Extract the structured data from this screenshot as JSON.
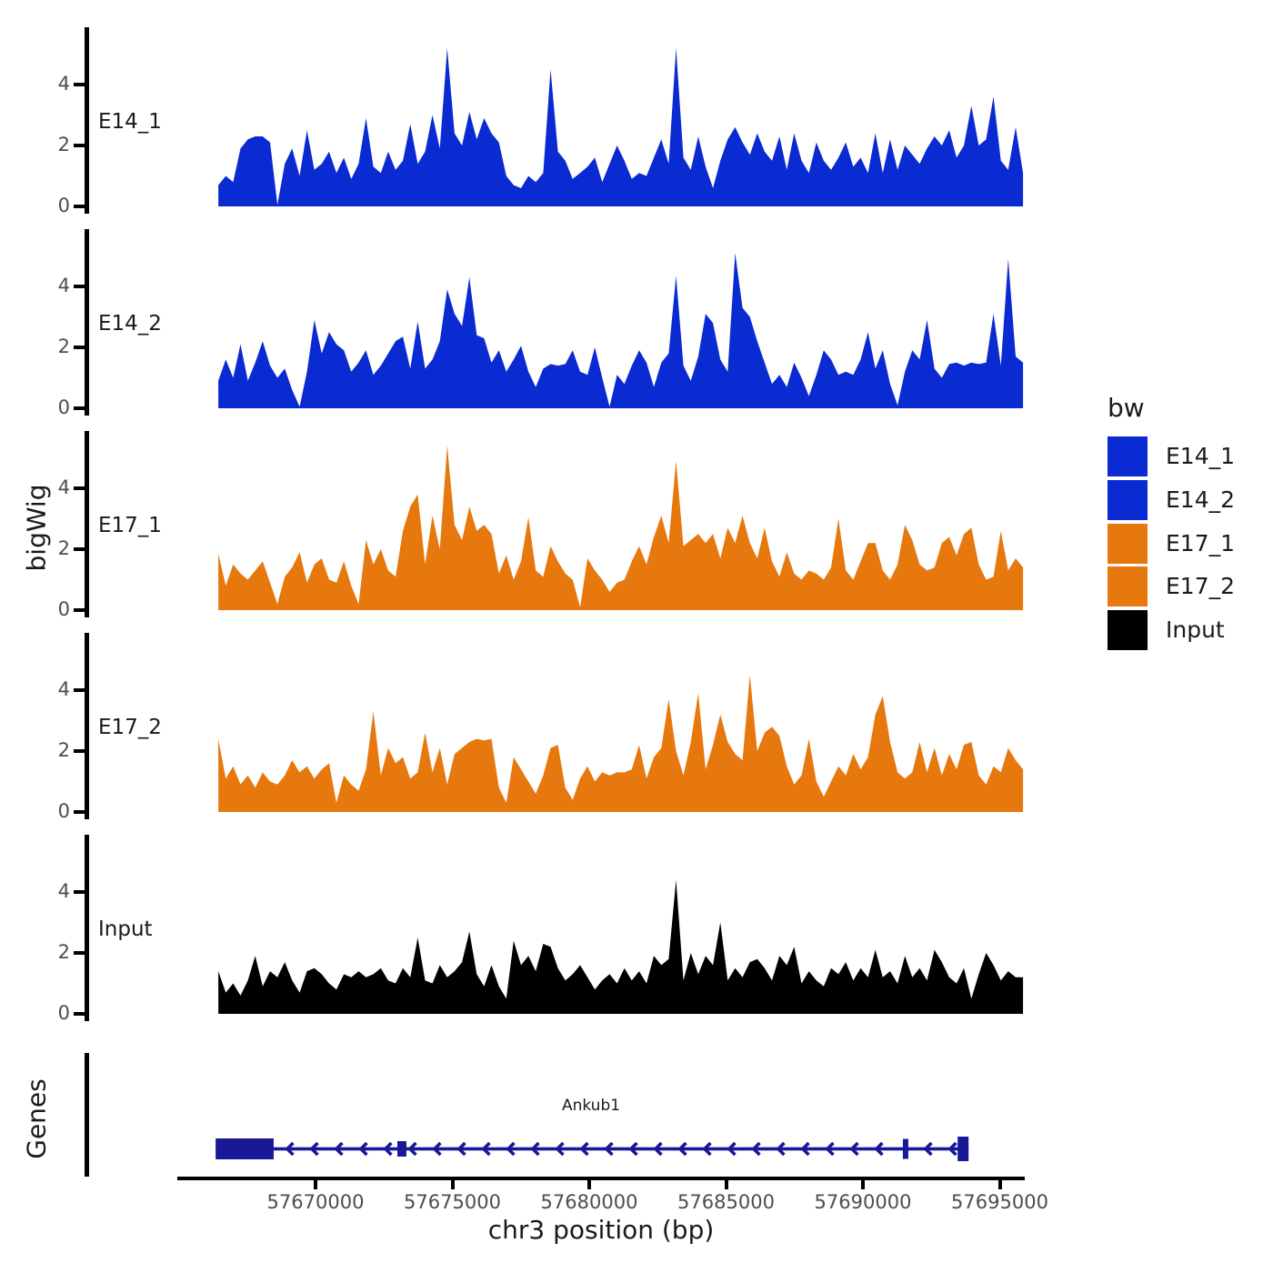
{
  "figure": {
    "ylabel_tracks": "bigWig",
    "ylabel_genes": "Genes",
    "xlabel": "chr3 position (bp)",
    "legend_title": "bw"
  },
  "chart_data": {
    "type": "area",
    "title": "",
    "xlabel": "chr3 position (bp)",
    "ylabel": "bigWig",
    "ylim": [
      0,
      5.9
    ],
    "y_ticks": [
      0,
      2,
      4
    ],
    "grid": false,
    "legend_position": "right",
    "legend_title": "bw",
    "x_axis_start": 57665000,
    "x_data_start": 57666450,
    "x_data_end": 57695850,
    "x_ticks": [
      {
        "value": 57670000,
        "label": "57670000"
      },
      {
        "value": 57675000,
        "label": "57675000"
      },
      {
        "value": 57680000,
        "label": "57680000"
      },
      {
        "value": 57685000,
        "label": "57685000"
      },
      {
        "value": 57690000,
        "label": "57690000"
      },
      {
        "value": 57695000,
        "label": "57695000"
      }
    ],
    "legend_entries": [
      {
        "label": "E14_1",
        "color": "#0a2ad2"
      },
      {
        "label": "E14_2",
        "color": "#0a2ad2"
      },
      {
        "label": "E17_1",
        "color": "#e6780e"
      },
      {
        "label": "E17_2",
        "color": "#e6780e"
      },
      {
        "label": "Input",
        "color": "#000000"
      }
    ],
    "tracks": [
      {
        "name": "E14_1",
        "color": "#0a2ad2",
        "values": [
          0.7,
          1.0,
          0.8,
          1.9,
          2.2,
          2.3,
          2.3,
          2.1,
          0.05,
          1.4,
          1.9,
          1.0,
          2.5,
          1.2,
          1.4,
          1.8,
          1.1,
          1.6,
          0.9,
          1.4,
          2.9,
          1.3,
          1.1,
          1.8,
          1.2,
          1.5,
          2.7,
          1.4,
          1.8,
          3.0,
          1.9,
          5.2,
          2.4,
          2.0,
          3.1,
          2.2,
          2.9,
          2.4,
          2.1,
          1.0,
          0.7,
          0.6,
          1.0,
          0.8,
          1.1,
          4.5,
          1.8,
          1.5,
          0.9,
          1.1,
          1.3,
          1.6,
          0.8,
          1.4,
          2.0,
          1.5,
          0.9,
          1.1,
          1.0,
          1.6,
          2.2,
          1.4,
          5.2,
          1.6,
          1.2,
          2.3,
          1.3,
          0.6,
          1.5,
          2.2,
          2.6,
          2.1,
          1.7,
          2.4,
          1.8,
          1.5,
          2.3,
          1.2,
          2.4,
          1.5,
          1.1,
          2.1,
          1.5,
          1.2,
          1.6,
          2.1,
          1.3,
          1.6,
          1.1,
          2.4,
          1.1,
          2.2,
          1.2,
          2.0,
          1.7,
          1.4,
          1.9,
          2.3,
          2.0,
          2.5,
          1.6,
          2.0,
          3.3,
          2.0,
          2.2,
          3.6,
          1.5,
          1.2,
          2.6,
          1.1
        ]
      },
      {
        "name": "E14_2",
        "color": "#0a2ad2",
        "values": [
          0.9,
          1.6,
          1.0,
          2.1,
          0.9,
          1.5,
          2.2,
          1.4,
          1.0,
          1.3,
          0.6,
          0.05,
          1.2,
          2.9,
          1.8,
          2.5,
          2.1,
          1.9,
          1.2,
          1.5,
          1.9,
          1.1,
          1.4,
          1.8,
          2.2,
          2.35,
          1.3,
          2.85,
          1.3,
          1.6,
          2.2,
          3.9,
          3.1,
          2.7,
          4.3,
          2.4,
          2.3,
          1.5,
          1.9,
          1.2,
          1.6,
          2.05,
          1.2,
          0.7,
          1.3,
          1.45,
          1.4,
          1.45,
          1.9,
          1.2,
          1.1,
          2.0,
          1.0,
          0.05,
          1.1,
          0.8,
          1.4,
          1.9,
          1.5,
          0.7,
          1.5,
          1.8,
          4.35,
          1.4,
          0.9,
          1.7,
          3.1,
          2.8,
          1.6,
          1.2,
          5.1,
          3.3,
          3.0,
          2.2,
          1.5,
          0.8,
          1.1,
          0.7,
          1.5,
          1.0,
          0.4,
          1.1,
          1.9,
          1.6,
          1.1,
          1.2,
          1.1,
          1.6,
          2.5,
          1.3,
          1.9,
          0.8,
          0.1,
          1.2,
          1.9,
          1.6,
          2.9,
          1.3,
          1.0,
          1.45,
          1.5,
          1.4,
          1.5,
          1.45,
          1.5,
          3.1,
          1.4,
          4.9,
          1.7,
          1.5
        ]
      },
      {
        "name": "E17_1",
        "color": "#e6780e",
        "values": [
          1.85,
          0.8,
          1.5,
          1.2,
          1.0,
          1.3,
          1.6,
          0.9,
          0.2,
          1.1,
          1.4,
          1.9,
          0.9,
          1.5,
          1.7,
          1.0,
          0.9,
          1.6,
          0.8,
          0.2,
          2.3,
          1.5,
          2.0,
          1.3,
          1.1,
          2.6,
          3.4,
          3.8,
          1.5,
          3.1,
          2.0,
          5.4,
          2.8,
          2.3,
          3.4,
          2.6,
          2.8,
          2.5,
          1.2,
          1.8,
          1.0,
          1.6,
          3.05,
          1.3,
          1.1,
          2.1,
          1.6,
          1.2,
          1.0,
          0.1,
          1.7,
          1.3,
          1.0,
          0.6,
          0.9,
          1.0,
          1.6,
          2.1,
          1.5,
          2.4,
          3.1,
          2.2,
          4.9,
          2.1,
          2.3,
          2.5,
          2.2,
          2.5,
          1.7,
          2.7,
          2.2,
          3.1,
          2.2,
          1.7,
          2.7,
          1.6,
          1.1,
          1.9,
          1.2,
          1.0,
          1.3,
          1.2,
          1.0,
          1.4,
          3.0,
          1.3,
          1.0,
          1.6,
          2.2,
          2.2,
          1.3,
          1.0,
          1.5,
          2.8,
          2.3,
          1.5,
          1.3,
          1.4,
          2.2,
          2.4,
          1.8,
          2.5,
          2.7,
          1.5,
          1.0,
          1.1,
          2.6,
          1.3,
          1.7,
          1.4
        ]
      },
      {
        "name": "E17_2",
        "color": "#e6780e",
        "values": [
          2.4,
          1.1,
          1.5,
          0.9,
          1.2,
          0.8,
          1.3,
          1.0,
          0.9,
          1.2,
          1.7,
          1.3,
          1.5,
          1.1,
          1.4,
          1.6,
          0.3,
          1.2,
          0.9,
          0.7,
          1.4,
          3.3,
          1.2,
          2.1,
          1.6,
          1.8,
          1.1,
          1.3,
          2.6,
          1.3,
          2.1,
          0.9,
          1.9,
          2.1,
          2.3,
          2.4,
          2.35,
          2.4,
          0.8,
          0.3,
          1.8,
          1.4,
          1.0,
          0.6,
          1.2,
          2.1,
          2.2,
          0.8,
          0.4,
          1.1,
          1.5,
          1.0,
          1.3,
          1.2,
          1.3,
          1.3,
          1.4,
          2.2,
          1.1,
          1.8,
          2.1,
          3.7,
          2.0,
          1.2,
          2.3,
          3.9,
          1.4,
          2.2,
          3.2,
          2.3,
          1.9,
          1.7,
          4.5,
          2.0,
          2.6,
          2.8,
          2.5,
          1.5,
          0.9,
          1.2,
          2.4,
          1.0,
          0.5,
          1.0,
          1.5,
          1.2,
          1.9,
          1.4,
          1.8,
          3.2,
          3.8,
          2.3,
          1.3,
          1.1,
          1.3,
          2.3,
          1.3,
          2.1,
          1.2,
          1.9,
          1.4,
          2.2,
          2.3,
          1.2,
          0.9,
          1.5,
          1.3,
          2.1,
          1.7,
          1.4
        ]
      },
      {
        "name": "Input",
        "color": "#000000",
        "values": [
          1.4,
          0.7,
          1.0,
          0.6,
          1.1,
          1.9,
          0.9,
          1.4,
          1.2,
          1.7,
          1.1,
          0.7,
          1.4,
          1.5,
          1.3,
          1.0,
          0.8,
          1.3,
          1.2,
          1.4,
          1.2,
          1.3,
          1.5,
          1.1,
          1.0,
          1.5,
          1.2,
          2.5,
          1.1,
          1.0,
          1.6,
          1.2,
          1.4,
          1.7,
          2.7,
          1.3,
          0.9,
          1.6,
          0.9,
          0.5,
          2.4,
          1.6,
          1.9,
          1.4,
          2.3,
          2.2,
          1.5,
          1.1,
          1.3,
          1.6,
          1.2,
          0.8,
          1.1,
          1.3,
          1.0,
          1.5,
          1.1,
          1.4,
          1.0,
          1.9,
          1.6,
          1.8,
          4.4,
          1.1,
          2.0,
          1.3,
          1.9,
          1.6,
          3.0,
          1.1,
          1.5,
          1.2,
          1.7,
          1.8,
          1.5,
          1.1,
          1.9,
          1.6,
          2.2,
          1.0,
          1.4,
          1.1,
          0.9,
          1.5,
          1.3,
          1.7,
          1.1,
          1.5,
          1.2,
          2.1,
          1.2,
          1.4,
          1.0,
          1.9,
          1.2,
          1.5,
          1.1,
          2.1,
          1.7,
          1.2,
          1.0,
          1.5,
          0.5,
          1.3,
          2.0,
          1.6,
          1.1,
          1.4,
          1.2,
          1.2
        ]
      }
    ],
    "genes_track": {
      "label": "Genes",
      "genes": [
        {
          "name": "Ankub1",
          "chromosome": "chr3",
          "strand": "-",
          "start": 57666350,
          "end": 57693860,
          "color": "#191997",
          "exons": [
            [
              57666350,
              57668470
            ],
            [
              57672990,
              57673320
            ],
            [
              57691460,
              57691660
            ],
            [
              57693460,
              57693860
            ]
          ]
        }
      ]
    }
  }
}
